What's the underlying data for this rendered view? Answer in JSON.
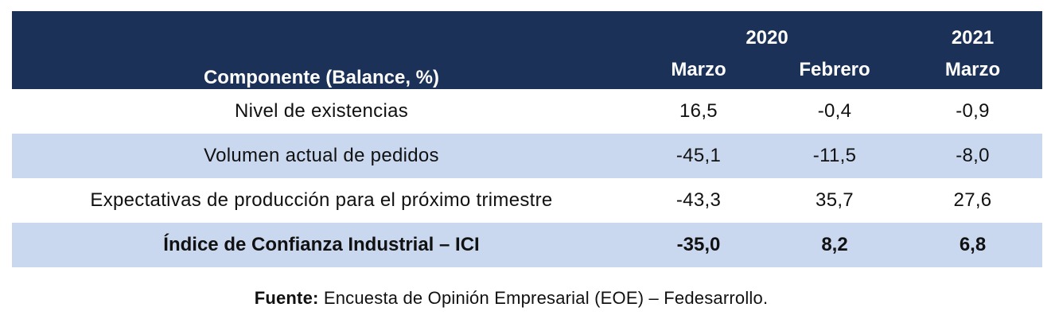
{
  "table": {
    "header": {
      "component_label": "Componente (Balance, %)",
      "year_2020": "2020",
      "year_2021": "2021",
      "months": [
        "Marzo",
        "Febrero",
        "Marzo"
      ]
    },
    "rows": [
      {
        "component": "Nivel de existencias",
        "values": [
          "16,5",
          "-0,4",
          "-0,9"
        ]
      },
      {
        "component": "Volumen actual de pedidos",
        "values": [
          "-45,1",
          "-11,5",
          "-8,0"
        ]
      },
      {
        "component": "Expectativas de producción para el próximo trimestre",
        "values": [
          "-43,3",
          "35,7",
          "27,6"
        ]
      },
      {
        "component": "Índice de Confianza Industrial – ICI",
        "values": [
          "-35,0",
          "8,2",
          "6,8"
        ]
      }
    ],
    "colors": {
      "header_bg": "#1b3157",
      "alt_row_bg": "#c9d8ef"
    }
  },
  "source": {
    "label": "Fuente:",
    "text": " Encuesta de Opinión Empresarial (EOE) – Fedesarrollo."
  }
}
